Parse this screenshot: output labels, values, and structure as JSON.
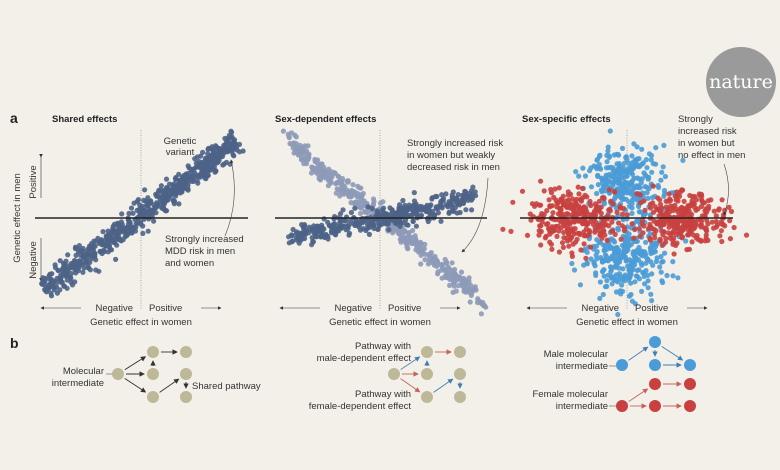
{
  "logo": {
    "text": "nature",
    "color": "#9a9a9a"
  },
  "panel_a_label": "a",
  "panel_b_label": "b",
  "colors": {
    "background": "#f3f0e9",
    "shared": "#4d6387",
    "sex_dependent_light": "#8d9ab8",
    "sex_dependent_dark": "#4d6387",
    "male": "#4a9bd6",
    "female": "#c8403f",
    "node": "#bdb898"
  },
  "axes": {
    "y_title": "Genetic effect in men",
    "y_positive": "Positive",
    "y_negative": "Negative",
    "x_title": "Genetic effect in women",
    "x_negative": "Negative",
    "x_positive": "Positive"
  },
  "plots": [
    {
      "title": "Shared effects",
      "callout_variant": [
        "Genetic",
        "variant"
      ],
      "annotation": [
        "Strongly increased",
        "MDD risk in men",
        "and women"
      ]
    },
    {
      "title": "Sex-dependent effects",
      "annotation": [
        "Strongly increased risk",
        "in women but weakly",
        "decreased risk in men"
      ]
    },
    {
      "title": "Sex-specific effects",
      "annotation": [
        "Strongly",
        "increased risk",
        "in women but",
        "no effect in men"
      ]
    }
  ],
  "pathways": {
    "shared": {
      "intermediate": [
        "Molecular",
        "intermediate"
      ],
      "pathway": "Shared pathway"
    },
    "sex_dependent": {
      "male": [
        "Pathway with",
        "male-dependent effect"
      ],
      "female": [
        "Pathway with",
        "female-dependent effect"
      ]
    },
    "sex_specific": {
      "male": [
        "Male molecular",
        "intermediate"
      ],
      "female": [
        "Female molecular",
        "intermediate"
      ]
    }
  }
}
